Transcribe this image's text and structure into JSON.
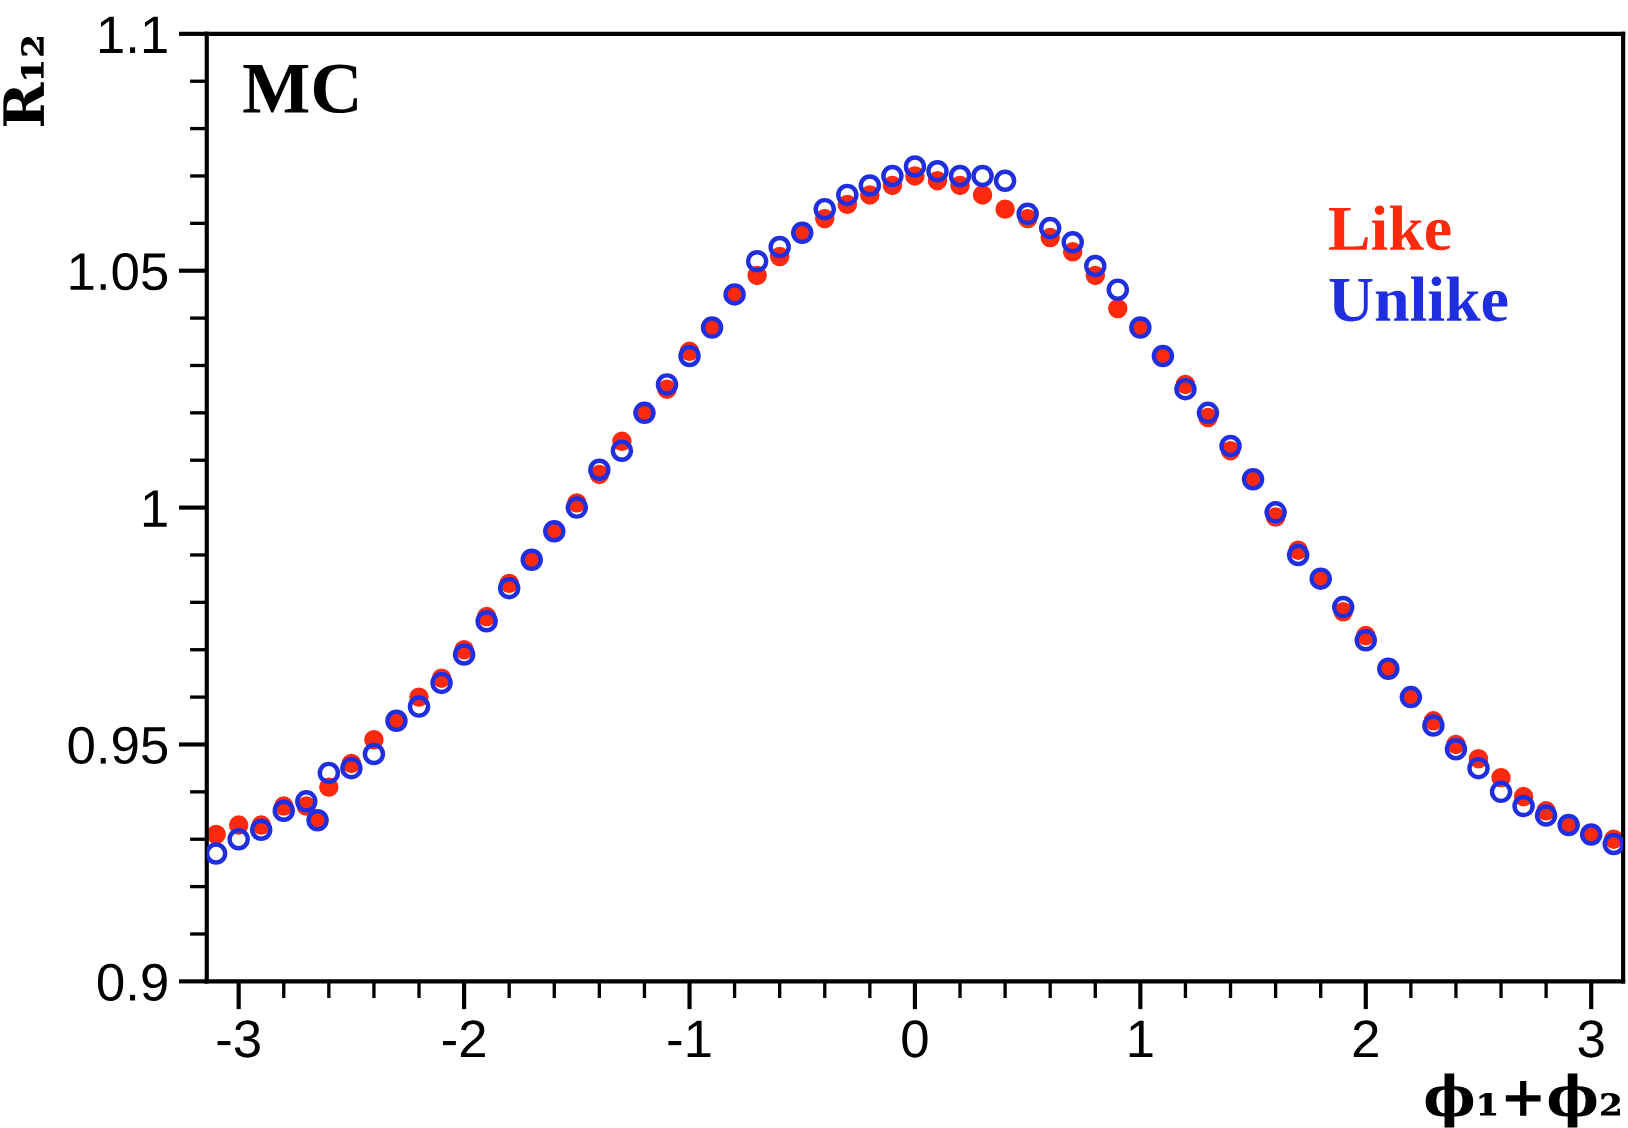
{
  "chart_data": {
    "type": "scatter",
    "xlabel": "ϕ₁+ϕ₂",
    "ylabel": "R₁₂",
    "annotations": [
      "MC"
    ],
    "x": [
      -3.1,
      -3.0,
      -2.9,
      -2.8,
      -2.7,
      -2.65,
      -2.6,
      -2.5,
      -2.4,
      -2.3,
      -2.2,
      -2.1,
      -2.0,
      -1.9,
      -1.8,
      -1.7,
      -1.6,
      -1.5,
      -1.4,
      -1.3,
      -1.2,
      -1.1,
      -1.0,
      -0.9,
      -0.8,
      -0.7,
      -0.6,
      -0.5,
      -0.4,
      -0.3,
      -0.2,
      -0.1,
      0.0,
      0.1,
      0.2,
      0.3,
      0.4,
      0.5,
      0.6,
      0.7,
      0.8,
      0.9,
      1.0,
      1.1,
      1.2,
      1.3,
      1.4,
      1.5,
      1.6,
      1.7,
      1.8,
      1.9,
      2.0,
      2.1,
      2.2,
      2.3,
      2.4,
      2.5,
      2.6,
      2.7,
      2.8,
      2.9,
      3.0,
      3.1
    ],
    "series": [
      {
        "name": "Like",
        "color": "#ff2a0e",
        "marker": "circle",
        "values": [
          0.931,
          0.933,
          0.933,
          0.937,
          0.937,
          0.934,
          0.941,
          0.946,
          0.951,
          0.955,
          0.96,
          0.964,
          0.97,
          0.977,
          0.984,
          0.989,
          0.995,
          1.001,
          1.007,
          1.014,
          1.02,
          1.025,
          1.033,
          1.038,
          1.045,
          1.049,
          1.053,
          1.058,
          1.061,
          1.064,
          1.066,
          1.068,
          1.07,
          1.069,
          1.068,
          1.066,
          1.063,
          1.061,
          1.057,
          1.054,
          1.049,
          1.042,
          1.038,
          1.032,
          1.026,
          1.019,
          1.012,
          1.006,
          0.998,
          0.991,
          0.985,
          0.978,
          0.973,
          0.966,
          0.96,
          0.955,
          0.95,
          0.947,
          0.943,
          0.939,
          0.936,
          0.933,
          0.931,
          0.93
        ]
      },
      {
        "name": "Unlike",
        "color": "#1f2fe0",
        "marker": "circle",
        "values": [
          0.927,
          0.93,
          0.932,
          0.936,
          0.938,
          0.934,
          0.944,
          0.945,
          0.948,
          0.955,
          0.958,
          0.963,
          0.969,
          0.976,
          0.983,
          0.989,
          0.995,
          1.0,
          1.008,
          1.012,
          1.02,
          1.026,
          1.032,
          1.038,
          1.045,
          1.052,
          1.055,
          1.058,
          1.063,
          1.066,
          1.068,
          1.07,
          1.072,
          1.071,
          1.07,
          1.07,
          1.069,
          1.062,
          1.059,
          1.056,
          1.051,
          1.046,
          1.038,
          1.032,
          1.025,
          1.02,
          1.013,
          1.006,
          0.999,
          0.99,
          0.985,
          0.979,
          0.972,
          0.966,
          0.96,
          0.954,
          0.949,
          0.945,
          0.94,
          0.937,
          0.935,
          0.933,
          0.931,
          0.929
        ]
      }
    ],
    "xlim": [
      -3.1416,
      3.1416
    ],
    "ylim": [
      0.9,
      1.1
    ],
    "xticks": [
      -3,
      {
        "value": -2.8,
        "label": null
      },
      {
        "value": -2.6,
        "label": null
      },
      {
        "value": -2.4,
        "label": null
      },
      {
        "value": -2.2,
        "label": null
      },
      -2,
      {
        "value": -1.8,
        "label": null
      },
      {
        "value": -1.6,
        "label": null
      },
      {
        "value": -1.4,
        "label": null
      },
      {
        "value": -1.2,
        "label": null
      },
      -1,
      {
        "value": -0.8,
        "label": null
      },
      {
        "value": -0.6,
        "label": null
      },
      {
        "value": -0.4,
        "label": null
      },
      {
        "value": -0.2,
        "label": null
      },
      0,
      {
        "value": 0.2,
        "label": null
      },
      {
        "value": 0.4,
        "label": null
      },
      {
        "value": 0.6,
        "label": null
      },
      {
        "value": 0.8,
        "label": null
      },
      1,
      {
        "value": 1.2,
        "label": null
      },
      {
        "value": 1.4,
        "label": null
      },
      {
        "value": 1.6,
        "label": null
      },
      {
        "value": 1.8,
        "label": null
      },
      2,
      {
        "value": 2.2,
        "label": null
      },
      {
        "value": 2.4,
        "label": null
      },
      {
        "value": 2.6,
        "label": null
      },
      {
        "value": 2.8,
        "label": null
      },
      3
    ],
    "yticks": [
      0.9,
      {
        "value": 0.91,
        "label": null
      },
      {
        "value": 0.92,
        "label": null
      },
      {
        "value": 0.93,
        "label": null
      },
      {
        "value": 0.94,
        "label": null
      },
      0.95,
      {
        "value": 0.96,
        "label": null
      },
      {
        "value": 0.97,
        "label": null
      },
      {
        "value": 0.98,
        "label": null
      },
      {
        "value": 0.99,
        "label": null
      },
      1,
      {
        "value": 1.01,
        "label": null
      },
      {
        "value": 1.02,
        "label": null
      },
      {
        "value": 1.03,
        "label": null
      },
      {
        "value": 1.04,
        "label": null
      },
      1.05,
      {
        "value": 1.06,
        "label": null
      },
      {
        "value": 1.07,
        "label": null
      },
      {
        "value": 1.08,
        "label": null
      },
      {
        "value": 1.09,
        "label": null
      },
      1.1
    ],
    "grid": false,
    "legend": "top right"
  }
}
